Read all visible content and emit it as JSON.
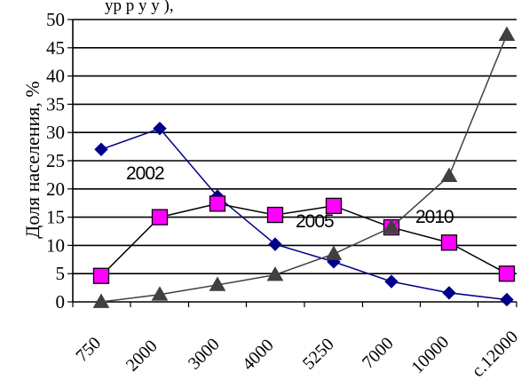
{
  "chart_data": {
    "type": "line",
    "title_fragment": "ур                             р у у ),",
    "ylabel": "Доля населения, %",
    "xlabel": "",
    "ylim": [
      0,
      50
    ],
    "yticks": [
      "0",
      "5",
      "10",
      "15",
      "20",
      "25",
      "30",
      "35",
      "40",
      "45",
      "50"
    ],
    "categories": [
      "750",
      "2000",
      "3000",
      "4000",
      "5250",
      "7000",
      "10000",
      "с.12000"
    ],
    "grid": true,
    "legend": "none",
    "series": [
      {
        "name": "2002",
        "marker": "diamond",
        "color": "#00008b",
        "values": [
          27,
          30.7,
          18.7,
          10.2,
          7.1,
          3.6,
          1.6,
          0.4
        ]
      },
      {
        "name": "2005",
        "marker": "square",
        "color": "#000000",
        "markerFill": "#ff00ff",
        "values": [
          4.6,
          15,
          17.4,
          15.4,
          17,
          13.2,
          10.5,
          5
        ]
      },
      {
        "name": "2010",
        "marker": "triangle",
        "color": "#404040",
        "values": [
          0,
          1.3,
          3,
          4.8,
          8.5,
          13.2,
          22.3,
          47.3
        ]
      }
    ],
    "annotations": [
      {
        "text": "2002",
        "series": 0
      },
      {
        "text": "2005",
        "series": 1
      },
      {
        "text": "2010",
        "series": 2
      }
    ]
  }
}
